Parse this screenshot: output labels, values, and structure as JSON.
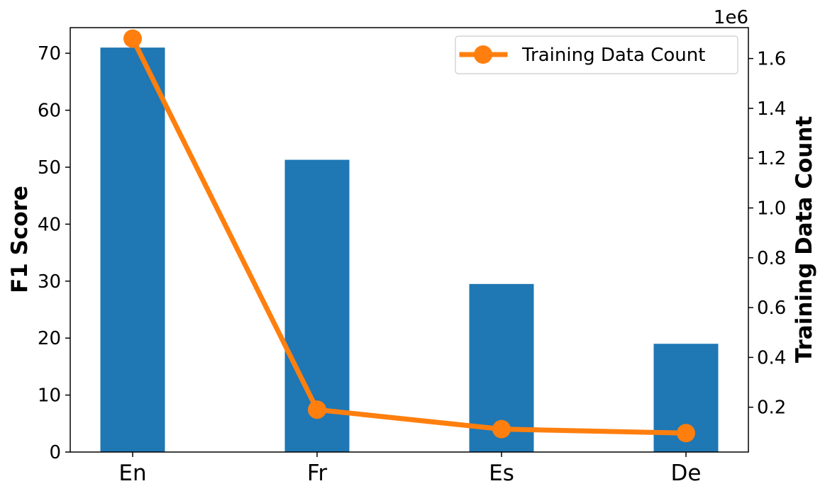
{
  "chart_data": {
    "type": "bar",
    "categories": [
      "En",
      "Fr",
      "Es",
      "De"
    ],
    "series": [
      {
        "values": [
          71.0,
          51.3,
          29.5,
          19.0
        ],
        "color": "#1f77b4",
        "axis": "left",
        "kind": "bar"
      },
      {
        "name": "Training Data Count",
        "values": [
          1680000,
          190000,
          112000,
          96000
        ],
        "color": "#ff7f0e",
        "axis": "right",
        "kind": "line"
      }
    ],
    "ylabel": "F1 Score",
    "y2label": "Training Data Count",
    "y2_offset_text": "1e6",
    "ylim": [
      0,
      74.5
    ],
    "y2lim": [
      20000,
      1724000
    ],
    "yticks": [
      0,
      10,
      20,
      30,
      40,
      50,
      60,
      70
    ],
    "y2ticks": [
      0.2,
      0.4,
      0.6,
      0.8,
      1.0,
      1.2,
      1.4,
      1.6
    ],
    "legend": {
      "placement": "top-right",
      "entries": [
        "Training Data Count"
      ]
    },
    "grid": false
  }
}
